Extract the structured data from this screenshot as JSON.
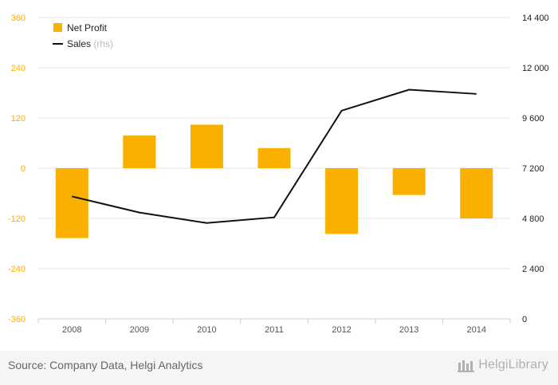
{
  "chart_data": {
    "type": "bar",
    "categories": [
      "2008",
      "2009",
      "2010",
      "2011",
      "2012",
      "2013",
      "2014"
    ],
    "series": [
      {
        "name": "Net Profit",
        "type": "bar",
        "axis": "left",
        "color": "#f9b000",
        "values": [
          -167,
          78,
          104,
          48,
          -157,
          -64,
          -120
        ]
      },
      {
        "name": "Sales",
        "suffix": "(rhs)",
        "type": "line",
        "axis": "right",
        "color": "#111111",
        "values": [
          5850,
          5080,
          4580,
          4850,
          9950,
          10950,
          10750
        ]
      }
    ],
    "left_axis": {
      "min": -360,
      "max": 360,
      "ticks": [
        "360",
        "240",
        "120",
        "0",
        "-120",
        "-240",
        "-360"
      ],
      "color": "#f9b000"
    },
    "right_axis": {
      "min": 0,
      "max": 14400,
      "ticks": [
        "14 400",
        "12 000",
        "9 600",
        "7 200",
        "4 800",
        "2 400",
        "0"
      ],
      "color": "#222222"
    },
    "legend": {
      "position": "top-left"
    },
    "grid": true
  },
  "footer": {
    "source": "Source: Company Data, Helgi Analytics",
    "brand": "HelgiLibrary",
    "logo_icon": "helgi-library-logo-icon"
  }
}
